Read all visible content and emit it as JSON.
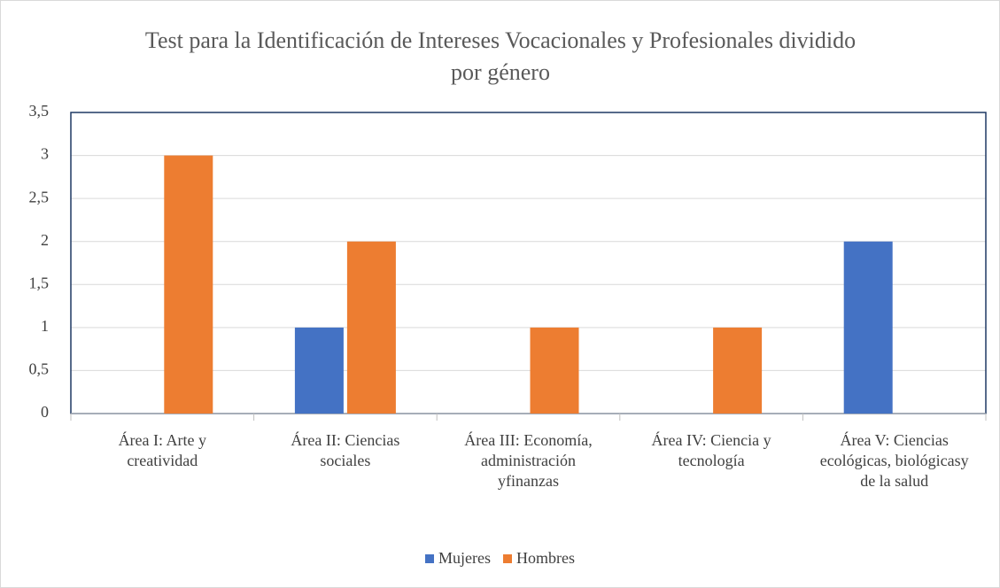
{
  "chart_data": {
    "type": "bar",
    "title": "Test para la Identificación de Intereses Vocacionales y Profesionales dividido por género",
    "categories": [
      "Área I: Arte y creatividad",
      "Área II: Ciencias sociales",
      "Área III: Economía, administración yfinanzas",
      "Área IV: Ciencia y tecnología",
      "Área V: Ciencias ecológicas, biológicasy de la salud"
    ],
    "series": [
      {
        "name": "Mujeres",
        "color": "#4472c4",
        "values": [
          0,
          1,
          0,
          0,
          2
        ]
      },
      {
        "name": "Hombres",
        "color": "#ed7d31",
        "values": [
          3,
          2,
          1,
          1,
          0
        ]
      }
    ],
    "ylim": [
      0,
      3.5
    ],
    "yticks": [
      0,
      {
        "value": 0.5,
        "label": "0,5"
      },
      1,
      {
        "value": 1.5,
        "label": "1,5"
      },
      2,
      {
        "value": 2.5,
        "label": "2,5"
      },
      3,
      {
        "value": 3.5,
        "label": "3,5"
      }
    ],
    "grid": true,
    "legend": "bottom"
  }
}
